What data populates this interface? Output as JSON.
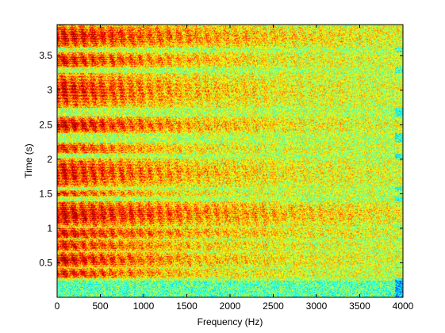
{
  "chart_data": {
    "type": "heatmap",
    "title": "",
    "xlabel": "Frequency (Hz)",
    "ylabel": "Time (s)",
    "xlim": [
      0,
      4000
    ],
    "ylim": [
      0,
      3.95
    ],
    "xticks": [
      0,
      500,
      1000,
      1500,
      2000,
      2500,
      3000,
      3500,
      4000
    ],
    "yticks": [
      0.5,
      1,
      1.5,
      2,
      2.5,
      3,
      3.5
    ],
    "grid": false,
    "legend": "none",
    "colormap": [
      "#00008f",
      "#0000ff",
      "#00ffff",
      "#ffff00",
      "#ff0000",
      "#800000"
    ],
    "background_level": 0.55,
    "noise_amplitude": 0.12,
    "frames": [
      {
        "t_start": 0.28,
        "t_end": 0.43,
        "peak": 0.92,
        "f_extent": 2200,
        "segments": 6
      },
      {
        "t_start": 0.44,
        "t_end": 0.66,
        "peak": 1.0,
        "f_extent": 2600,
        "segments": 9
      },
      {
        "t_start": 0.67,
        "t_end": 0.84,
        "peak": 0.9,
        "f_extent": 2400,
        "segments": 7
      },
      {
        "t_start": 0.85,
        "t_end": 1.02,
        "peak": 0.95,
        "f_extent": 3000,
        "segments": 8
      },
      {
        "t_start": 1.03,
        "t_end": 1.4,
        "peak": 1.0,
        "f_extent": 3750,
        "segments": 12
      },
      {
        "t_start": 1.46,
        "t_end": 1.56,
        "peak": 0.85,
        "f_extent": 1800,
        "segments": 4
      },
      {
        "t_start": 1.6,
        "t_end": 2.02,
        "peak": 0.92,
        "f_extent": 2700,
        "segments": 10
      },
      {
        "t_start": 2.08,
        "t_end": 2.24,
        "peak": 0.85,
        "f_extent": 2000,
        "segments": 5
      },
      {
        "t_start": 2.38,
        "t_end": 2.62,
        "peak": 1.0,
        "f_extent": 2700,
        "segments": 9
      },
      {
        "t_start": 2.75,
        "t_end": 3.25,
        "peak": 0.92,
        "f_extent": 2500,
        "segments": 11
      },
      {
        "t_start": 3.33,
        "t_end": 3.55,
        "peak": 0.95,
        "f_extent": 2500,
        "segments": 7
      },
      {
        "t_start": 3.62,
        "t_end": 3.95,
        "peak": 0.95,
        "f_extent": 3400,
        "segments": 10
      }
    ]
  }
}
